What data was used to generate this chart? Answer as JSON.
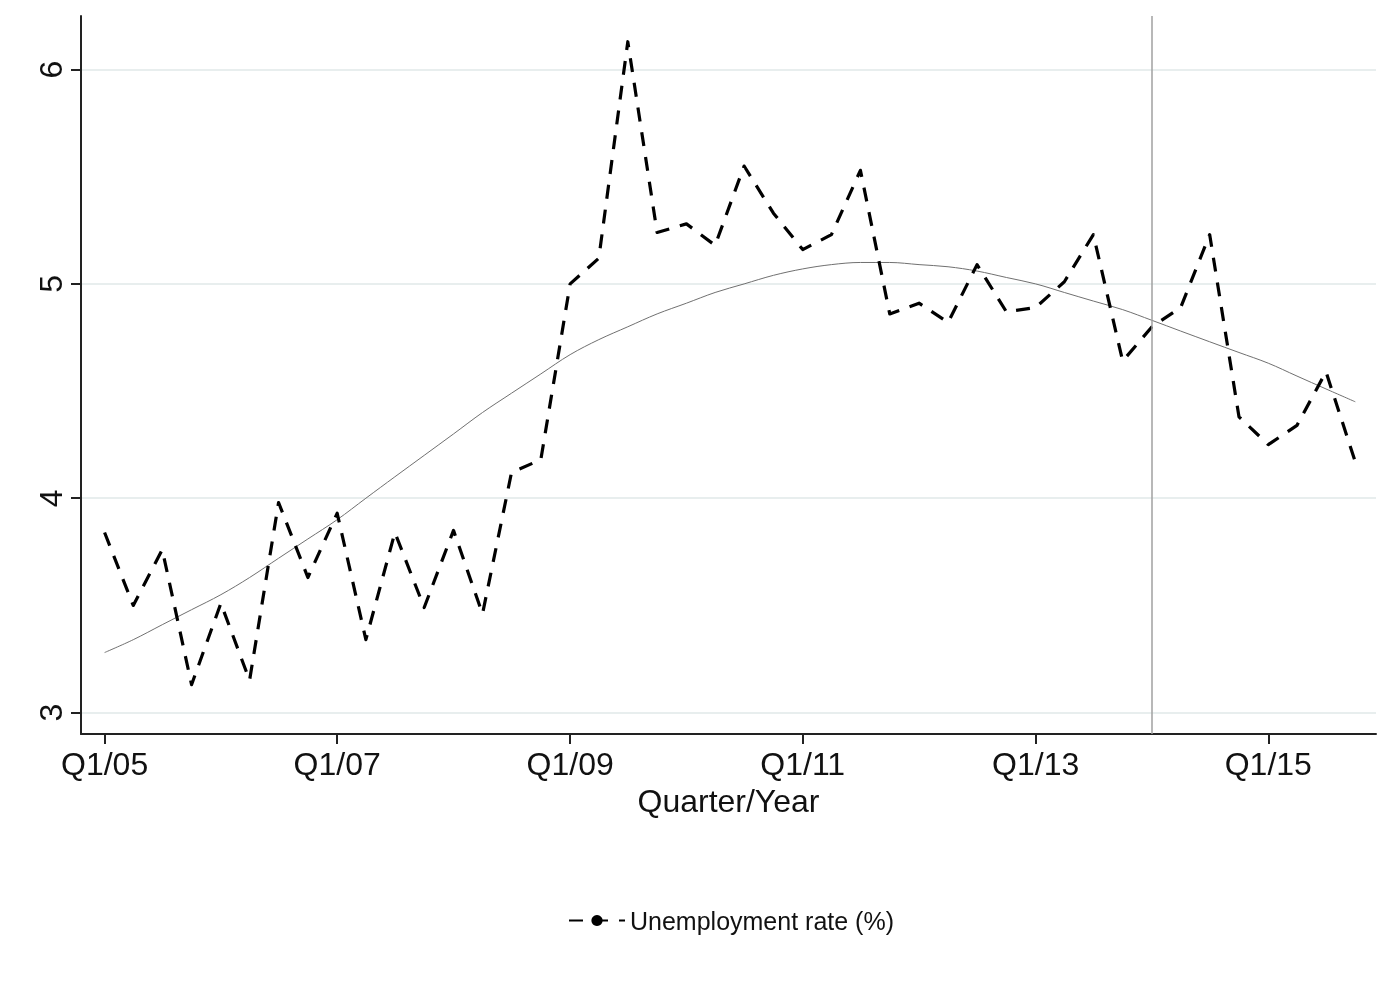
{
  "chart_data": {
    "type": "line",
    "xlabel": "Quarter/Year",
    "xlim": [
      "2004-10-19",
      "2015-12-05"
    ],
    "xticks": [
      {
        "value": "2005-01",
        "label": "Q1/05"
      },
      {
        "value": "2007-01",
        "label": "Q1/07"
      },
      {
        "value": "2009-01",
        "label": "Q1/09"
      },
      {
        "value": "2011-01",
        "label": "Q1/11"
      },
      {
        "value": "2013-01",
        "label": "Q1/13"
      },
      {
        "value": "2015-01",
        "label": "Q1/15"
      }
    ],
    "ylim": [
      2.9,
      6.25
    ],
    "yticks": [
      3,
      4,
      5,
      6
    ],
    "grid": "y",
    "legend": "bottom",
    "marker": "none",
    "x": [
      "2005-01",
      "2005-04",
      "2005-07",
      "2005-10",
      "2006-01",
      "2006-04",
      "2006-07",
      "2006-10",
      "2007-01",
      "2007-04",
      "2007-07",
      "2007-10",
      "2008-01",
      "2008-04",
      "2008-07",
      "2008-10",
      "2009-01",
      "2009-04",
      "2009-07",
      "2009-10",
      "2010-01",
      "2010-04",
      "2010-07",
      "2010-10",
      "2011-01",
      "2011-04",
      "2011-07",
      "2011-10",
      "2012-01",
      "2012-04",
      "2012-07",
      "2012-10",
      "2013-01",
      "2013-04",
      "2013-07",
      "2013-10",
      "2014-01",
      "2014-04",
      "2014-07",
      "2014-10",
      "2015-01",
      "2015-04",
      "2015-07",
      "2015-10"
    ],
    "series": [
      {
        "name": "Unemployment rate (%)",
        "color": "#000000",
        "line_style": "dashed",
        "values": [
          3.84,
          3.5,
          3.76,
          3.13,
          3.51,
          3.15,
          3.98,
          3.63,
          3.93,
          3.34,
          3.84,
          3.49,
          3.85,
          3.46,
          4.12,
          4.18,
          5.0,
          5.12,
          6.13,
          5.24,
          5.28,
          5.18,
          5.55,
          5.33,
          5.16,
          5.23,
          5.53,
          4.86,
          4.91,
          4.82,
          5.09,
          4.87,
          4.89,
          5.01,
          5.23,
          4.64,
          4.8,
          4.89,
          5.23,
          4.38,
          4.25,
          4.34,
          4.59,
          4.17
        ]
      },
      {
        "type": "line",
        "color": "#707070",
        "line_style": "solid",
        "values": [
          3.28,
          3.34,
          3.41,
          3.48,
          3.55,
          3.63,
          3.72,
          3.81,
          3.9,
          4.0,
          4.1,
          4.2,
          4.3,
          4.4,
          4.49,
          4.58,
          4.67,
          4.74,
          4.8,
          4.86,
          4.91,
          4.96,
          5.0,
          5.04,
          5.07,
          5.09,
          5.1,
          5.1,
          5.09,
          5.08,
          5.06,
          5.03,
          5.0,
          4.96,
          4.92,
          4.88,
          4.83,
          4.78,
          4.73,
          4.68,
          4.63,
          4.57,
          4.51,
          4.45
        ]
      }
    ],
    "ref_lines": [
      {
        "axis": "x",
        "value": "2014-01",
        "color": "#a0a0a0",
        "line_style": "solid"
      }
    ]
  }
}
